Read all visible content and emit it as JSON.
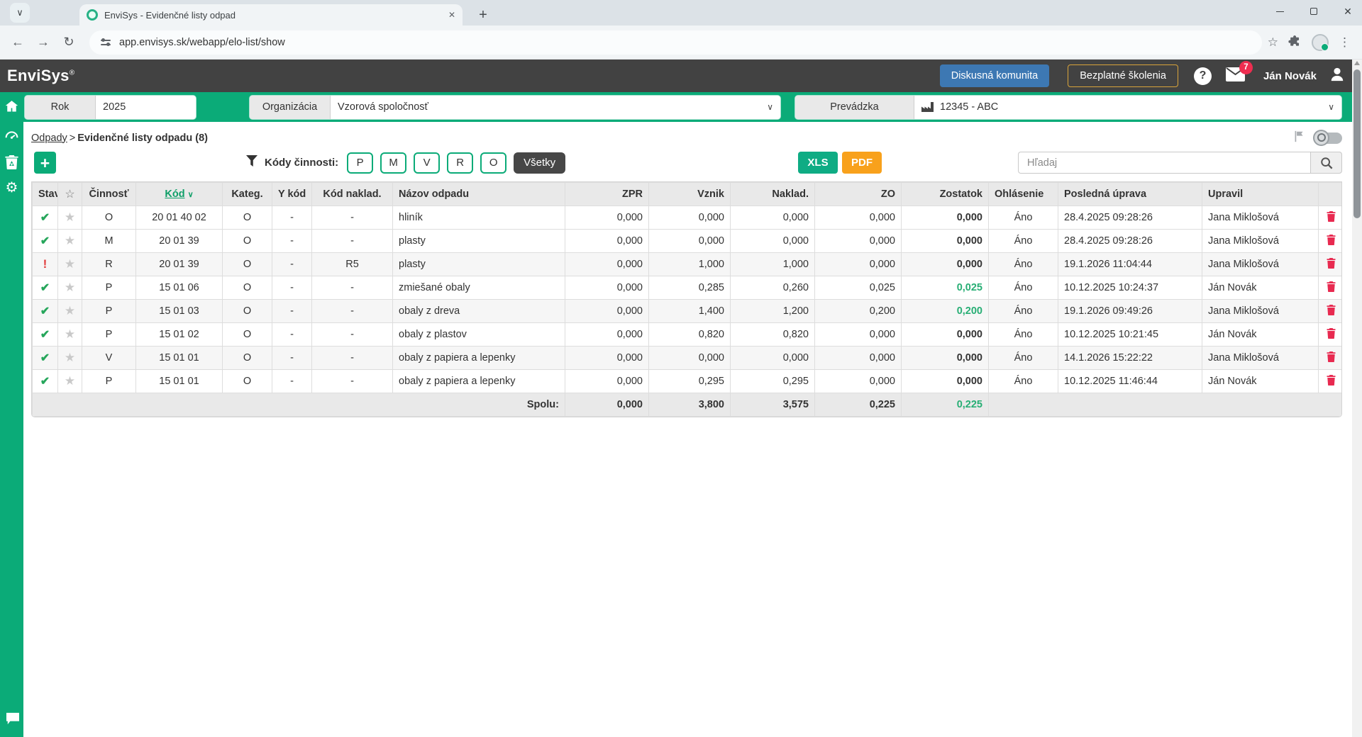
{
  "browser": {
    "tab_title": "EnviSys - Evidenčné listy odpad",
    "url": "app.envisys.sk/webapp/elo-list/show"
  },
  "icons": {
    "close": "✕",
    "plus": "+",
    "back": "←",
    "forward": "→",
    "refresh": "↻",
    "kebab": "⋮",
    "star_outline": "☆",
    "star_filled": "★",
    "chevron": "∨",
    "check": "✔",
    "warn": "!",
    "gear": "⚙",
    "help": "?"
  },
  "header": {
    "logo": "EnviSys",
    "logo_mark": "®",
    "community_button": "Diskusná komunita",
    "training_button": "Bezplatné školenia",
    "mail_badge": "7",
    "user_name": "Ján Novák"
  },
  "filters": {
    "year_label": "Rok",
    "year_value": "2025",
    "org_label": "Organizácia",
    "org_value": "Vzorová spoločnosť",
    "site_label": "Prevádzka",
    "site_value": "12345 - ABC"
  },
  "breadcrumb": {
    "parent": "Odpady",
    "separator": ">",
    "current": "Evidenčné listy odpadu (8)"
  },
  "toolbar": {
    "filter_label": "Kódy činnosti:",
    "code_buttons": [
      "P",
      "M",
      "V",
      "R",
      "O"
    ],
    "all_button": "Všetky",
    "xls_button": "XLS",
    "pdf_button": "PDF",
    "search_placeholder": "Hľadaj"
  },
  "table": {
    "headers": {
      "stav": "Stav",
      "cinnost": "Činnosť",
      "kod": "Kód",
      "kateg": "Kateg.",
      "ykod": "Y kód",
      "kodnaklad": "Kód naklad.",
      "nazov": "Názov odpadu",
      "zpr": "ZPR",
      "vznik": "Vznik",
      "naklad": "Naklad.",
      "zo": "ZO",
      "zostatok": "Zostatok",
      "ohlasenie": "Ohlásenie",
      "posledna": "Posledná úprava",
      "upravil": "Upravil"
    },
    "rows": [
      {
        "stav": "ok",
        "cinnost": "O",
        "kod": "20 01 40 02",
        "kateg": "O",
        "ykod": "-",
        "kodnaklad": "-",
        "nazov": "hliník",
        "zpr": "0,000",
        "vznik": "0,000",
        "naklad": "0,000",
        "zo": "0,000",
        "zostatok": "0,000",
        "zostatok_green": false,
        "ohlasenie": "Áno",
        "posledna": "28.4.2025 09:28:26",
        "upravil": "Jana Miklošová"
      },
      {
        "stav": "ok",
        "cinnost": "M",
        "kod": "20 01 39",
        "kateg": "O",
        "ykod": "-",
        "kodnaklad": "-",
        "nazov": "plasty",
        "zpr": "0,000",
        "vznik": "0,000",
        "naklad": "0,000",
        "zo": "0,000",
        "zostatok": "0,000",
        "zostatok_green": false,
        "ohlasenie": "Áno",
        "posledna": "28.4.2025 09:28:26",
        "upravil": "Jana Miklošová"
      },
      {
        "stav": "warn",
        "cinnost": "R",
        "kod": "20 01 39",
        "kateg": "O",
        "ykod": "-",
        "kodnaklad": "R5",
        "nazov": "plasty",
        "zpr": "0,000",
        "vznik": "1,000",
        "naklad": "1,000",
        "zo": "0,000",
        "zostatok": "0,000",
        "zostatok_green": false,
        "ohlasenie": "Áno",
        "posledna": "19.1.2026 11:04:44",
        "upravil": "Jana Miklošová"
      },
      {
        "stav": "ok",
        "cinnost": "P",
        "kod": "15 01 06",
        "kateg": "O",
        "ykod": "-",
        "kodnaklad": "-",
        "nazov": "zmiešané obaly",
        "zpr": "0,000",
        "vznik": "0,285",
        "naklad": "0,260",
        "zo": "0,025",
        "zostatok": "0,025",
        "zostatok_green": true,
        "ohlasenie": "Áno",
        "posledna": "10.12.2025 10:24:37",
        "upravil": "Ján Novák"
      },
      {
        "stav": "ok",
        "cinnost": "P",
        "kod": "15 01 03",
        "kateg": "O",
        "ykod": "-",
        "kodnaklad": "-",
        "nazov": "obaly z dreva",
        "zpr": "0,000",
        "vznik": "1,400",
        "naklad": "1,200",
        "zo": "0,200",
        "zostatok": "0,200",
        "zostatok_green": true,
        "ohlasenie": "Áno",
        "posledna": "19.1.2026 09:49:26",
        "upravil": "Jana Miklošová"
      },
      {
        "stav": "ok",
        "cinnost": "P",
        "kod": "15 01 02",
        "kateg": "O",
        "ykod": "-",
        "kodnaklad": "-",
        "nazov": "obaly z plastov",
        "zpr": "0,000",
        "vznik": "0,820",
        "naklad": "0,820",
        "zo": "0,000",
        "zostatok": "0,000",
        "zostatok_green": false,
        "ohlasenie": "Áno",
        "posledna": "10.12.2025 10:21:45",
        "upravil": "Ján Novák"
      },
      {
        "stav": "ok",
        "cinnost": "V",
        "kod": "15 01 01",
        "kateg": "O",
        "ykod": "-",
        "kodnaklad": "-",
        "nazov": "obaly z papiera a lepenky",
        "zpr": "0,000",
        "vznik": "0,000",
        "naklad": "0,000",
        "zo": "0,000",
        "zostatok": "0,000",
        "zostatok_green": false,
        "ohlasenie": "Áno",
        "posledna": "14.1.2026 15:22:22",
        "upravil": "Jana Miklošová"
      },
      {
        "stav": "ok",
        "cinnost": "P",
        "kod": "15 01 01",
        "kateg": "O",
        "ykod": "-",
        "kodnaklad": "-",
        "nazov": "obaly z papiera a lepenky",
        "zpr": "0,000",
        "vznik": "0,295",
        "naklad": "0,295",
        "zo": "0,000",
        "zostatok": "0,000",
        "zostatok_green": false,
        "ohlasenie": "Áno",
        "posledna": "10.12.2025 11:46:44",
        "upravil": "Ján Novák"
      }
    ],
    "total": {
      "label": "Spolu:",
      "zpr": "0,000",
      "vznik": "3,800",
      "naklad": "3,575",
      "zo": "0,225",
      "zostatok": "0,225"
    }
  },
  "colors": {
    "primary_green": "#0bab78",
    "header_dark": "#424242",
    "blue_button": "#3d78b3",
    "orange_border": "#d9a43b",
    "pdf_orange": "#f8a11c",
    "danger_red": "#e82a50",
    "value_green": "#27ae74",
    "badge_red": "#ee2d50"
  }
}
